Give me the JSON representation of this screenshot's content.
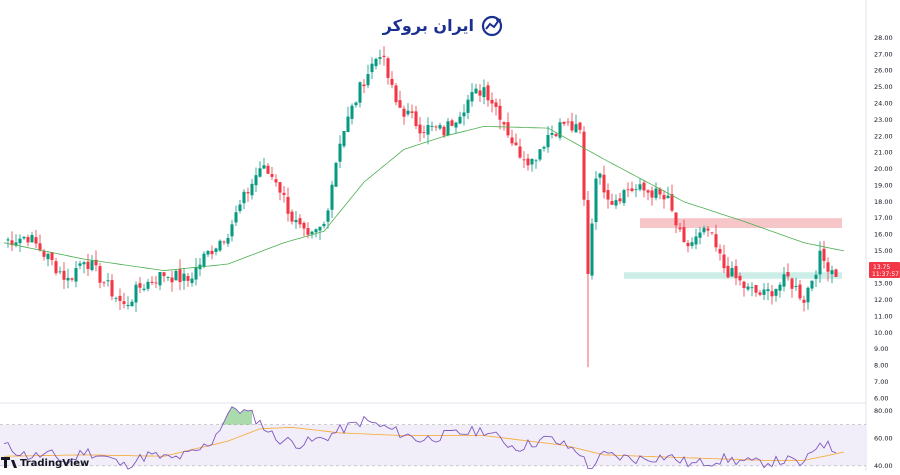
{
  "brand": {
    "logo_text": "ایران بروکر",
    "watermark": "TradingView"
  },
  "colors": {
    "up": "#089981",
    "down": "#f23645",
    "ma": "#4caf50",
    "rsi": "#7e57c2",
    "rsi_ma": "#f5b041",
    "supply": "#f7c6c9",
    "demand": "#cdeee8"
  },
  "price_badge": {
    "price": "13.75",
    "time": "11:37:57"
  },
  "chart_data": [
    {
      "type": "candlestick",
      "yticks": [
        "28.00",
        "27.00",
        "26.00",
        "25.00",
        "24.00",
        "23.00",
        "22.00",
        "21.00",
        "20.00",
        "19.00",
        "18.00",
        "17.00",
        "16.00",
        "15.00",
        "14.00",
        "13.00",
        "12.00",
        "11.00",
        "10.00",
        "9.00",
        "8.00",
        "7.00",
        "6.00"
      ],
      "ylim": [
        5.9,
        28.7
      ],
      "zones": [
        {
          "name": "supply",
          "range": [
            16.4,
            17.0
          ]
        },
        {
          "name": "demand",
          "range": [
            13.3,
            13.7
          ]
        }
      ],
      "anchors": [
        [
          0,
          15.6
        ],
        [
          6,
          15.9
        ],
        [
          12,
          14.3
        ],
        [
          16,
          13.2
        ],
        [
          20,
          14.6
        ],
        [
          24,
          13.4
        ],
        [
          30,
          11.6
        ],
        [
          34,
          12.8
        ],
        [
          40,
          13.6
        ],
        [
          46,
          13.2
        ],
        [
          50,
          14.6
        ],
        [
          56,
          16.2
        ],
        [
          60,
          18.2
        ],
        [
          64,
          20.1
        ],
        [
          68,
          19.4
        ],
        [
          72,
          17.0
        ],
        [
          76,
          15.6
        ],
        [
          80,
          16.6
        ],
        [
          84,
          21.8
        ],
        [
          90,
          25.5
        ],
        [
          94,
          27.2
        ],
        [
          98,
          24.0
        ],
        [
          104,
          22.6
        ],
        [
          110,
          22.3
        ],
        [
          116,
          24.2
        ],
        [
          120,
          25.0
        ],
        [
          124,
          23.4
        ],
        [
          128,
          21.2
        ],
        [
          132,
          20.5
        ],
        [
          136,
          22.1
        ],
        [
          140,
          22.8
        ],
        [
          144,
          22.2
        ],
        [
          146,
          13.8
        ],
        [
          148,
          19.8
        ],
        [
          152,
          18.1
        ],
        [
          156,
          18.8
        ],
        [
          162,
          18.6
        ],
        [
          166,
          18.0
        ],
        [
          170,
          15.2
        ],
        [
          176,
          16.2
        ],
        [
          180,
          14.0
        ],
        [
          186,
          12.6
        ],
        [
          190,
          12.3
        ],
        [
          196,
          13.3
        ],
        [
          200,
          12.1
        ],
        [
          204,
          14.6
        ],
        [
          208,
          13.7
        ]
      ],
      "extremes": [
        [
          146,
          7.9
        ]
      ],
      "moving_average": [
        [
          0,
          15.5
        ],
        [
          20,
          14.5
        ],
        [
          40,
          13.8
        ],
        [
          56,
          14.2
        ],
        [
          70,
          15.5
        ],
        [
          80,
          16.2
        ],
        [
          90,
          19.2
        ],
        [
          100,
          21.2
        ],
        [
          110,
          22.0
        ],
        [
          120,
          22.6
        ],
        [
          136,
          22.5
        ],
        [
          150,
          20.6
        ],
        [
          170,
          18.0
        ],
        [
          185,
          16.8
        ],
        [
          200,
          15.5
        ],
        [
          210,
          15.0
        ]
      ]
    },
    {
      "type": "line",
      "name": "RSI",
      "yticks": [
        "80.00",
        "60.00",
        "40.00"
      ],
      "ylim": [
        37,
        85
      ],
      "band": [
        40,
        70
      ],
      "rsi": [
        [
          0,
          55
        ],
        [
          6,
          47
        ],
        [
          12,
          48
        ],
        [
          16,
          42
        ],
        [
          20,
          51
        ],
        [
          26,
          46
        ],
        [
          30,
          40
        ],
        [
          36,
          48
        ],
        [
          42,
          45
        ],
        [
          48,
          50
        ],
        [
          52,
          58
        ],
        [
          56,
          78
        ],
        [
          58,
          82
        ],
        [
          62,
          77
        ],
        [
          68,
          60
        ],
        [
          74,
          56
        ],
        [
          80,
          60
        ],
        [
          84,
          66
        ],
        [
          90,
          73
        ],
        [
          96,
          67
        ],
        [
          104,
          59
        ],
        [
          112,
          63
        ],
        [
          120,
          66
        ],
        [
          128,
          53
        ],
        [
          136,
          60
        ],
        [
          144,
          50
        ],
        [
          146,
          38
        ],
        [
          150,
          48
        ],
        [
          158,
          45
        ],
        [
          166,
          47
        ],
        [
          172,
          41
        ],
        [
          180,
          45
        ],
        [
          188,
          42
        ],
        [
          196,
          44
        ],
        [
          200,
          41
        ],
        [
          204,
          58
        ],
        [
          208,
          51
        ]
      ],
      "rsi_ma": [
        [
          0,
          47
        ],
        [
          20,
          48
        ],
        [
          40,
          47
        ],
        [
          56,
          58
        ],
        [
          64,
          67
        ],
        [
          72,
          68
        ],
        [
          84,
          64
        ],
        [
          100,
          62
        ],
        [
          120,
          62
        ],
        [
          140,
          55
        ],
        [
          150,
          48
        ],
        [
          170,
          46
        ],
        [
          190,
          44
        ],
        [
          200,
          44
        ],
        [
          210,
          50
        ]
      ]
    }
  ]
}
